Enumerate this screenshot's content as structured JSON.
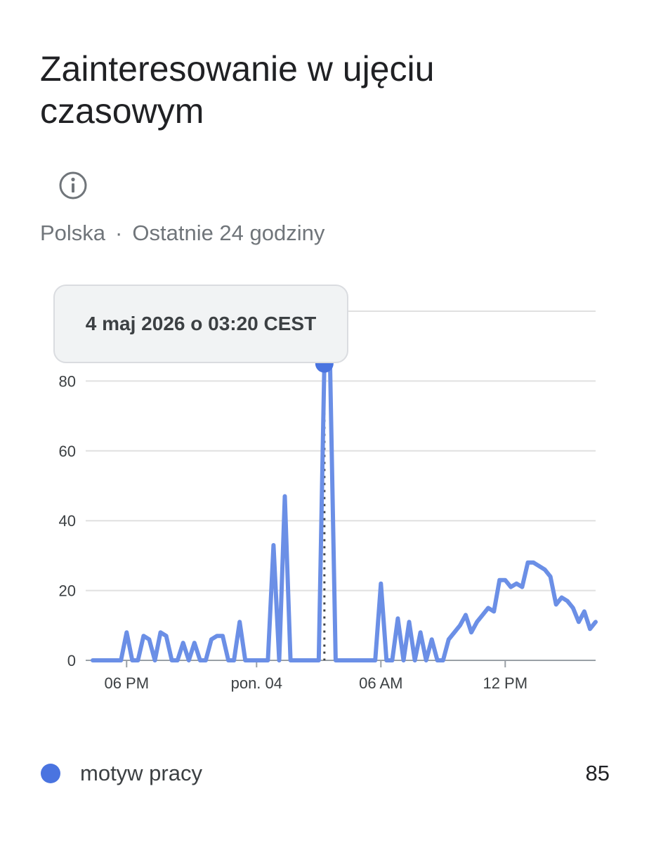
{
  "header": {
    "title": "Zainteresowanie w ujęciu czasowym",
    "region": "Polska",
    "separator": "·",
    "period": "Ostatnie 24 godziny",
    "info_icon": "info-circle-icon"
  },
  "tooltip": {
    "text": "4 maj 2026 o 03:20 CEST"
  },
  "legend": {
    "label": "motyw pracy",
    "value": "85",
    "color": "#4a74e0"
  },
  "chart_data": {
    "type": "line",
    "ylim": [
      0,
      100
    ],
    "yticks": [
      "0",
      "20",
      "40",
      "60",
      "80"
    ],
    "xticks": [
      {
        "label": "06 PM",
        "index": 6
      },
      {
        "label": "pon. 04",
        "index": 29
      },
      {
        "label": "06 AM",
        "index": 51
      },
      {
        "label": "12 PM",
        "index": 73
      }
    ],
    "grid": true,
    "highlight_index": 41,
    "series": [
      {
        "name": "motyw pracy",
        "color": "#6b8fe6",
        "values": [
          0,
          0,
          0,
          0,
          0,
          0,
          8,
          0,
          0,
          7,
          6,
          0,
          8,
          7,
          0,
          0,
          5,
          0,
          5,
          0,
          0,
          6,
          7,
          7,
          0,
          0,
          11,
          0,
          0,
          0,
          0,
          0,
          33,
          0,
          47,
          0,
          0,
          0,
          0,
          0,
          0,
          85,
          85,
          0,
          0,
          0,
          0,
          0,
          0,
          0,
          0,
          22,
          0,
          0,
          12,
          0,
          11,
          0,
          8,
          0,
          6,
          0,
          0,
          6,
          8,
          10,
          13,
          8,
          11,
          13,
          15,
          14,
          23,
          23,
          21,
          22,
          21,
          28,
          28,
          27,
          26,
          24,
          16,
          18,
          17,
          15,
          11,
          14,
          9,
          11
        ]
      }
    ]
  }
}
